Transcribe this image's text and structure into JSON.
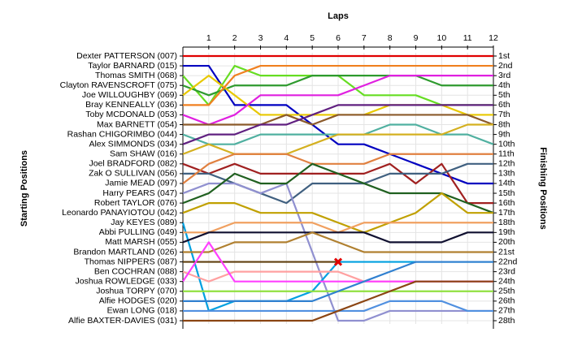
{
  "chart_data": {
    "type": "line",
    "title": "Laps",
    "y_label": "Starting Positions",
    "y2_label": "Finishing Positions",
    "x": [
      0,
      1,
      2,
      3,
      4,
      5,
      6,
      7,
      8,
      9,
      10,
      11,
      12
    ],
    "xlim": [
      0,
      12
    ],
    "xticks": [
      1,
      2,
      3,
      4,
      5,
      6,
      7,
      8,
      9,
      10,
      11,
      12
    ],
    "ylim": [
      1,
      28
    ],
    "yticks": [
      {
        "value": 1,
        "label": "1st"
      },
      {
        "value": 2,
        "label": "2nd"
      },
      {
        "value": 3,
        "label": "3rd"
      },
      {
        "value": 4,
        "label": "4th"
      },
      {
        "value": 5,
        "label": "5th"
      },
      {
        "value": 6,
        "label": "6th"
      },
      {
        "value": 7,
        "label": "7th"
      },
      {
        "value": 8,
        "label": "8th"
      },
      {
        "value": 9,
        "label": "9th"
      },
      {
        "value": 10,
        "label": "10th"
      },
      {
        "value": 11,
        "label": "11th"
      },
      {
        "value": 12,
        "label": "12th"
      },
      {
        "value": 13,
        "label": "13th"
      },
      {
        "value": 14,
        "label": "14th"
      },
      {
        "value": 15,
        "label": "15th"
      },
      {
        "value": 16,
        "label": "16th"
      },
      {
        "value": 17,
        "label": "17th"
      },
      {
        "value": 18,
        "label": "18th"
      },
      {
        "value": 19,
        "label": "19th"
      },
      {
        "value": 20,
        "label": "20th"
      },
      {
        "value": 21,
        "label": "21st"
      },
      {
        "value": 22,
        "label": "22nd"
      },
      {
        "value": 23,
        "label": "23rd"
      },
      {
        "value": 24,
        "label": "24th"
      },
      {
        "value": 25,
        "label": "25th"
      },
      {
        "value": 26,
        "label": "26th"
      },
      {
        "value": 27,
        "label": "27th"
      },
      {
        "value": 28,
        "label": "28th"
      }
    ],
    "grid": true,
    "series": [
      {
        "name": "Dexter PATTERSON (007)",
        "color": "#e00000",
        "values": [
          1,
          1,
          1,
          1,
          1,
          1,
          1,
          1,
          1,
          1,
          1,
          1,
          1
        ]
      },
      {
        "name": "Taylor BARNARD (015)",
        "color": "#0000c0",
        "values": [
          2,
          2,
          6,
          6,
          6,
          8,
          10,
          10,
          11,
          12,
          13,
          14,
          14
        ]
      },
      {
        "name": "Thomas SMITH (068)",
        "color": "#66dd22",
        "values": [
          3,
          6,
          2,
          3,
          3,
          3,
          3,
          5,
          5,
          5,
          6,
          6,
          6
        ]
      },
      {
        "name": "Clayton RAVENSCROFT (075)",
        "color": "#2e9a2e",
        "values": [
          4,
          5,
          4,
          4,
          4,
          3,
          3,
          3,
          3,
          3,
          4,
          4,
          4
        ]
      },
      {
        "name": "Joe WILLOUGHBY (069)",
        "color": "#e8c800",
        "values": [
          5,
          3,
          5,
          7,
          7,
          7,
          7,
          7,
          6,
          6,
          6,
          7,
          7
        ]
      },
      {
        "name": "Bray KENNEALLY (036)",
        "color": "#f08020",
        "values": [
          6,
          6,
          3,
          2,
          2,
          2,
          2,
          2,
          2,
          2,
          2,
          2,
          2
        ]
      },
      {
        "name": "Toby MCDONALD (053)",
        "color": "#e020e0",
        "values": [
          7,
          8,
          7,
          5,
          5,
          5,
          5,
          4,
          3,
          3,
          3,
          3,
          3
        ]
      },
      {
        "name": "Max BARNETT (054)",
        "color": "#8b5a2b",
        "values": [
          8,
          8,
          8,
          8,
          7,
          8,
          7,
          7,
          7,
          7,
          7,
          7,
          8
        ]
      },
      {
        "name": "Rashan CHIGORIMBO (044)",
        "color": "#50b0a0",
        "values": [
          9,
          10,
          10,
          9,
          9,
          9,
          9,
          9,
          8,
          8,
          9,
          9,
          10
        ]
      },
      {
        "name": "Alex SIMMONDS (034)",
        "color": "#602080",
        "values": [
          10,
          9,
          9,
          8,
          8,
          7,
          6,
          6,
          6,
          6,
          6,
          6,
          6
        ]
      },
      {
        "name": "Sam SHAW (016)",
        "color": "#d4b020",
        "values": [
          11,
          10,
          11,
          11,
          11,
          10,
          9,
          9,
          9,
          9,
          9,
          8,
          8
        ]
      },
      {
        "name": "Joel BRADFORD (082)",
        "color": "#a02020",
        "values": [
          12,
          13,
          12,
          13,
          13,
          13,
          13,
          13,
          12,
          14,
          12,
          16,
          16
        ]
      },
      {
        "name": "Zak O SULLIVAN (056)",
        "color": "#406080",
        "values": [
          13,
          13,
          14,
          15,
          16,
          14,
          14,
          14,
          13,
          13,
          13,
          12,
          12
        ]
      },
      {
        "name": "Jamie MEAD (097)",
        "color": "#e08040",
        "values": [
          14,
          12,
          11,
          11,
          11,
          12,
          12,
          12,
          11,
          11,
          11,
          11,
          11
        ]
      },
      {
        "name": "Harry PEARS (047)",
        "color": "#9090d0",
        "values": [
          15,
          14,
          14,
          15,
          14,
          21,
          28,
          28,
          27,
          27,
          27,
          27,
          27
        ]
      },
      {
        "name": "Robert TAYLOR (076)",
        "color": "#206020",
        "values": [
          16,
          15,
          13,
          14,
          14,
          12,
          13,
          14,
          15,
          15,
          15,
          16,
          17
        ]
      },
      {
        "name": "Leonardo PANAYIOTOU (042)",
        "color": "#c0a000",
        "values": [
          17,
          16,
          16,
          17,
          17,
          17,
          18,
          19,
          18,
          17,
          15,
          17,
          17
        ]
      },
      {
        "name": "Jay KEYES (089)",
        "color": "#00a0e0",
        "values": [
          18,
          27,
          26,
          26,
          26,
          25,
          22,
          22,
          22,
          22,
          22,
          22,
          22
        ]
      },
      {
        "name": "Abbi PULLING (049)",
        "color": "#f0a060",
        "values": [
          19,
          19,
          18,
          18,
          18,
          18,
          19,
          18,
          18,
          18,
          18,
          18,
          18
        ]
      },
      {
        "name": "Matt MARSH (055)",
        "color": "#101030",
        "values": [
          20,
          19,
          19,
          19,
          19,
          19,
          19,
          19,
          20,
          20,
          20,
          19,
          19
        ]
      },
      {
        "name": "Brandon MARTLAND (026)",
        "color": "#b08030",
        "values": [
          21,
          21,
          20,
          20,
          20,
          19,
          20,
          21,
          21,
          21,
          21,
          21,
          21
        ]
      },
      {
        "name": "Thomas NIPPERS (087)",
        "color": "#604010",
        "values": [
          22,
          22,
          22,
          22,
          22,
          22,
          22,
          null,
          null,
          null,
          null,
          null,
          null
        ]
      },
      {
        "name": "Ben COCHRAN (088)",
        "color": "#ffa0a0",
        "values": [
          23,
          24,
          23,
          23,
          23,
          23,
          23,
          24,
          24,
          24,
          24,
          24,
          24
        ]
      },
      {
        "name": "Joshua ROWLEDGE (033)",
        "color": "#ff40ff",
        "values": [
          24,
          20,
          24,
          24,
          24,
          24,
          24,
          24,
          24,
          24,
          24,
          24,
          24
        ]
      },
      {
        "name": "Joshua TORPY (070)",
        "color": "#90e040",
        "values": [
          25,
          25,
          25,
          25,
          25,
          25,
          25,
          25,
          25,
          25,
          25,
          25,
          25
        ]
      },
      {
        "name": "Alfie HODGES (020)",
        "color": "#3080d0",
        "values": [
          26,
          26,
          26,
          26,
          26,
          26,
          25,
          24,
          23,
          22,
          22,
          22,
          22
        ]
      },
      {
        "name": "Ewan LONG (018)",
        "color": "#5090e0",
        "values": [
          27,
          27,
          27,
          27,
          27,
          27,
          27,
          27,
          26,
          26,
          26,
          27,
          27
        ]
      },
      {
        "name": "Alfie BAXTER-DAVIES (031)",
        "color": "#8b4513",
        "values": [
          28,
          28,
          28,
          28,
          28,
          28,
          27,
          26,
          25,
          24,
          24,
          24,
          24
        ]
      }
    ],
    "markers": [
      {
        "x": 6,
        "y": 22,
        "color": "#e00000"
      }
    ]
  }
}
